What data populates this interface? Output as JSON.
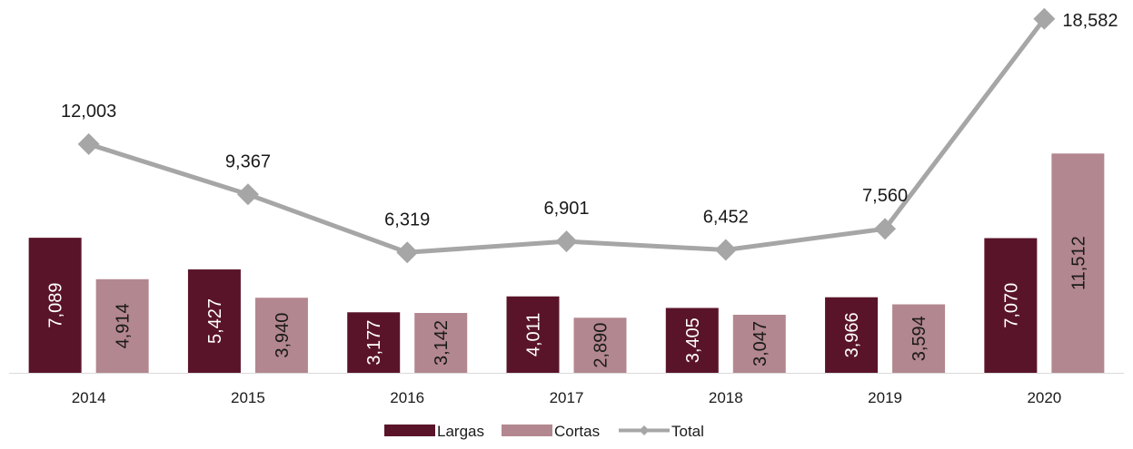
{
  "chart_data": {
    "type": "bar",
    "categories": [
      "2014",
      "2015",
      "2016",
      "2017",
      "2018",
      "2019",
      "2020"
    ],
    "series": [
      {
        "name": "Largas",
        "kind": "bar",
        "color": "#5a1429",
        "values": [
          7089,
          5427,
          3177,
          4011,
          3405,
          3966,
          7070
        ],
        "labels": [
          "7,089",
          "5,427",
          "3,177",
          "4,011",
          "3,405",
          "3,966",
          "7,070"
        ]
      },
      {
        "name": "Cortas",
        "kind": "bar",
        "color": "#b3878f",
        "values": [
          4914,
          3940,
          3142,
          2890,
          3047,
          3594,
          11512
        ],
        "labels": [
          "4,914",
          "3,940",
          "3,142",
          "2,890",
          "3,047",
          "3,594",
          "11,512"
        ]
      },
      {
        "name": "Total",
        "kind": "line",
        "color": "#a6a6a6",
        "values": [
          12003,
          9367,
          6319,
          6901,
          6452,
          7560,
          18582
        ],
        "labels": [
          "12,003",
          "9,367",
          "6,319",
          "6,901",
          "6,452",
          "7,560",
          "18,582"
        ]
      }
    ],
    "legend": {
      "position": "bottom"
    },
    "grid": false
  }
}
